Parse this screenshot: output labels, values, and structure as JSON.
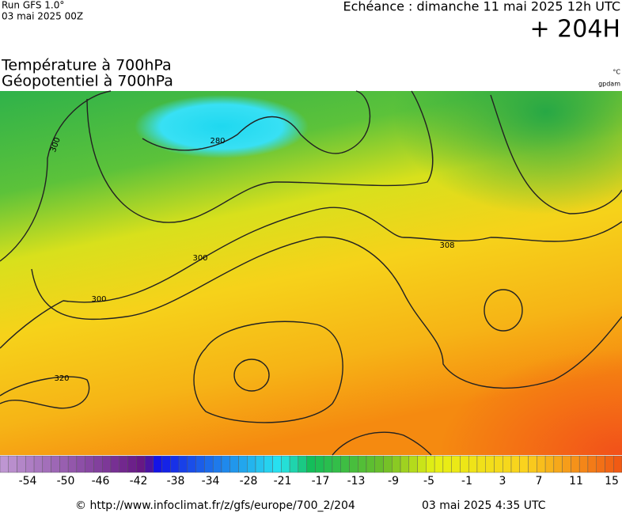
{
  "header": {
    "run": "Run GFS 1.0°",
    "run_date": "03 mai 2025 00Z",
    "forecast_time": "Echéance : dimanche 11 mai 2025 12h UTC",
    "lead": "+ 204H",
    "title_1": "Température à 700hPa",
    "title_2": "Géopotentiel à 700hPa",
    "unit_1": "°C",
    "unit_2": "gpdam"
  },
  "map": {
    "contour_labels": [
      "300",
      "280",
      "300",
      "300",
      "308",
      "320"
    ]
  },
  "legend": {
    "labels": [
      "-54",
      "-50",
      "-46",
      "-42",
      "-38",
      "-34",
      "-28",
      "-21",
      "-17",
      "-13",
      "-9",
      "-5",
      "-1",
      "3",
      "7",
      "11",
      "15"
    ]
  },
  "footer": {
    "source": "© http://www.infoclimat.fr/z/gfs/europe/700_2/204",
    "generated": "03 mai 2025  4:35 UTC"
  }
}
